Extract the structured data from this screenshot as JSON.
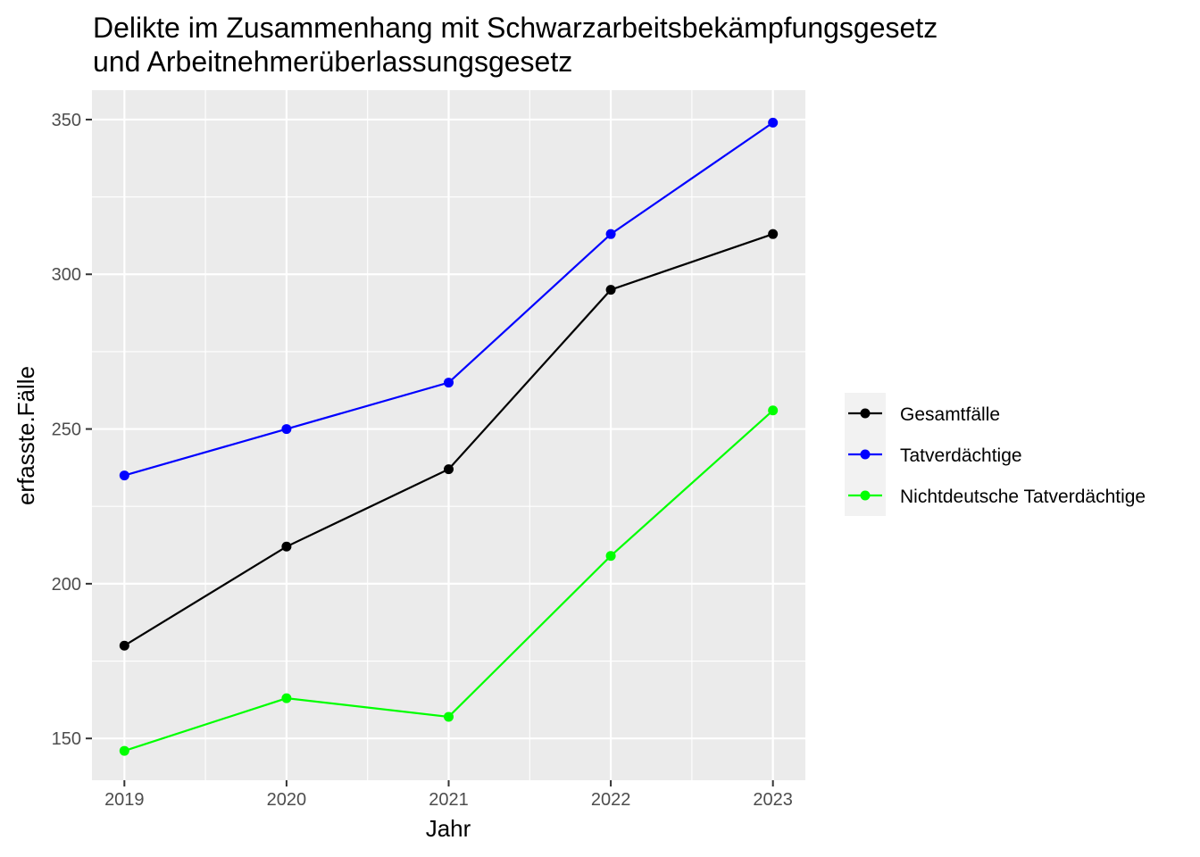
{
  "chart_data": {
    "type": "line",
    "title_lines": [
      "Delikte im Zusammenhang mit Schwarzarbeitsbekämpfungsgesetz",
      "und Arbeitnehmerüberlassungsgesetz"
    ],
    "xlabel": "Jahr",
    "ylabel": "erfasste.Fälle",
    "x": [
      2019,
      2020,
      2021,
      2022,
      2023
    ],
    "x_tick_labels": [
      "2019",
      "2020",
      "2021",
      "2022",
      "2023"
    ],
    "y_ticks": [
      150,
      200,
      250,
      300,
      350
    ],
    "y_tick_labels": [
      "150",
      "200",
      "250",
      "300",
      "350"
    ],
    "ylim": [
      136.5,
      359.5
    ],
    "xlim": [
      2018.8,
      2023.2
    ],
    "grid": true,
    "legend_position": "right",
    "series": [
      {
        "name": "Gesamtfälle",
        "color": "#000000",
        "values": [
          180,
          212,
          237,
          295,
          313
        ]
      },
      {
        "name": "Tatverdächtige",
        "color": "#0000ff",
        "values": [
          235,
          250,
          265,
          313,
          349
        ]
      },
      {
        "name": "Nichtdeutsche Tatverdächtige",
        "color": "#00ff00",
        "values": [
          146,
          163,
          157,
          209,
          256
        ]
      }
    ]
  }
}
